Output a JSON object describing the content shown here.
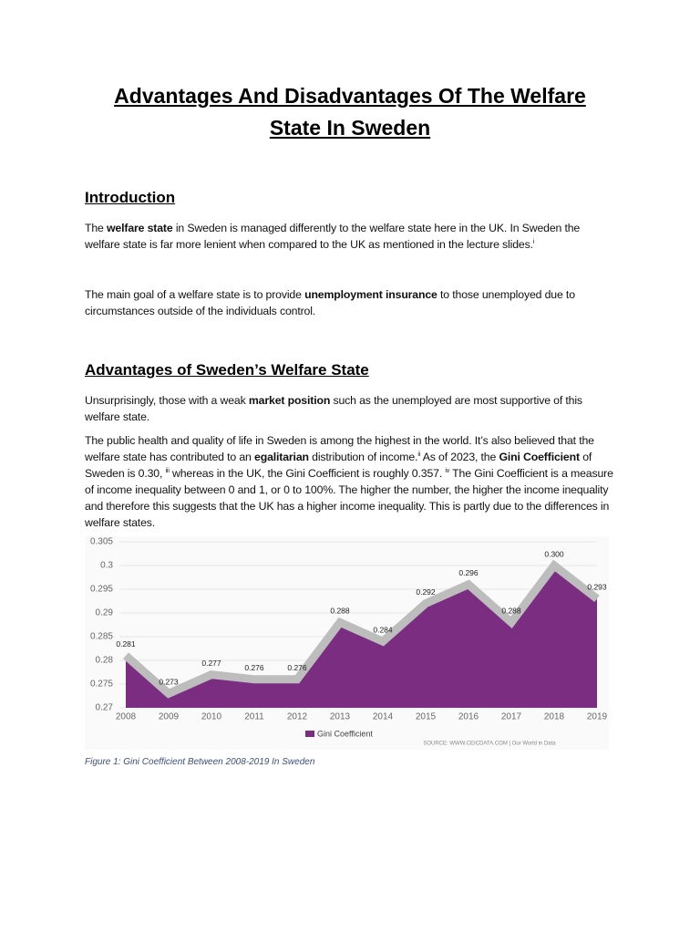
{
  "document": {
    "title": "Advantages And Disadvantages Of The Welfare State In Sweden",
    "sections": [
      {
        "heading": "Introduction",
        "paragraphs": [
          [
            {
              "text": "The "
            },
            {
              "text": "welfare state",
              "bold": true
            },
            {
              "text": " in Sweden is managed differently to the welfare state here in the UK. In Sweden the welfare state is far more lenient when compared to the UK as mentioned in the lecture slides."
            },
            {
              "text": "i",
              "sup": true
            }
          ],
          [
            {
              "text": "The main goal of a welfare state is to provide "
            },
            {
              "text": "unemployment insurance",
              "bold": true
            },
            {
              "text": " to those unemployed due to circumstances outside of the individuals control."
            }
          ]
        ]
      },
      {
        "heading": "Advantages of Sweden’s Welfare State",
        "paragraphs": [
          [
            {
              "text": "Unsurprisingly, those with a weak "
            },
            {
              "text": "market position",
              "bold": true
            },
            {
              "text": " such as the unemployed are most supportive of this welfare state."
            }
          ],
          [
            {
              "text": "The public health and quality of life in Sweden is among the highest in the world. It’s also believed that the welfare state has contributed to an "
            },
            {
              "text": "egalitarian",
              "bold": true
            },
            {
              "text": " distribution of income."
            },
            {
              "text": "ii",
              "sup": true
            },
            {
              "text": " As of 2023, the "
            },
            {
              "text": "Gini Coefficient",
              "bold": true
            },
            {
              "text": " of Sweden is 0.30, "
            },
            {
              "text": "iii",
              "sup": true
            },
            {
              "text": " whereas in the UK, the Gini Coefficient is roughly 0.357. "
            },
            {
              "text": "iv",
              "sup": true
            },
            {
              "text": " The Gini Coefficient is a measure of income inequality between 0 and 1, or 0 to 100%. The higher the number, the higher the income inequality and therefore this suggests that the UK has a higher income inequality. This is partly due to the differences in welfare states."
            }
          ]
        ]
      }
    ],
    "caption": "Figure 1: Gini Coefficient Between 2008-2019 In Sweden"
  },
  "chart_data": {
    "type": "area",
    "categories": [
      "2008",
      "2009",
      "2010",
      "2011",
      "2012",
      "2013",
      "2014",
      "2015",
      "2016",
      "2017",
      "2018",
      "2019"
    ],
    "series": [
      {
        "name": "Gini Coefficient",
        "color": "#7b2d82",
        "values": [
          0.281,
          0.273,
          0.277,
          0.276,
          0.276,
          0.288,
          0.284,
          0.292,
          0.296,
          0.288,
          0.3,
          0.293
        ],
        "value_labels": [
          "0.281",
          "0.273",
          "0.277",
          "0.276",
          "0.276",
          "0.288",
          "0.284",
          "0.292",
          "0.296",
          "0.288",
          "0.300",
          "0.293"
        ]
      }
    ],
    "line_color": "#bdbdbd",
    "ylim": [
      0.27,
      0.305
    ],
    "yticks": [
      0.27,
      0.275,
      0.28,
      0.285,
      0.29,
      0.295,
      0.3,
      0.305
    ],
    "grid": true,
    "source": "SOURCE: WWW.CEICDATA.COM | Our World in Data"
  }
}
